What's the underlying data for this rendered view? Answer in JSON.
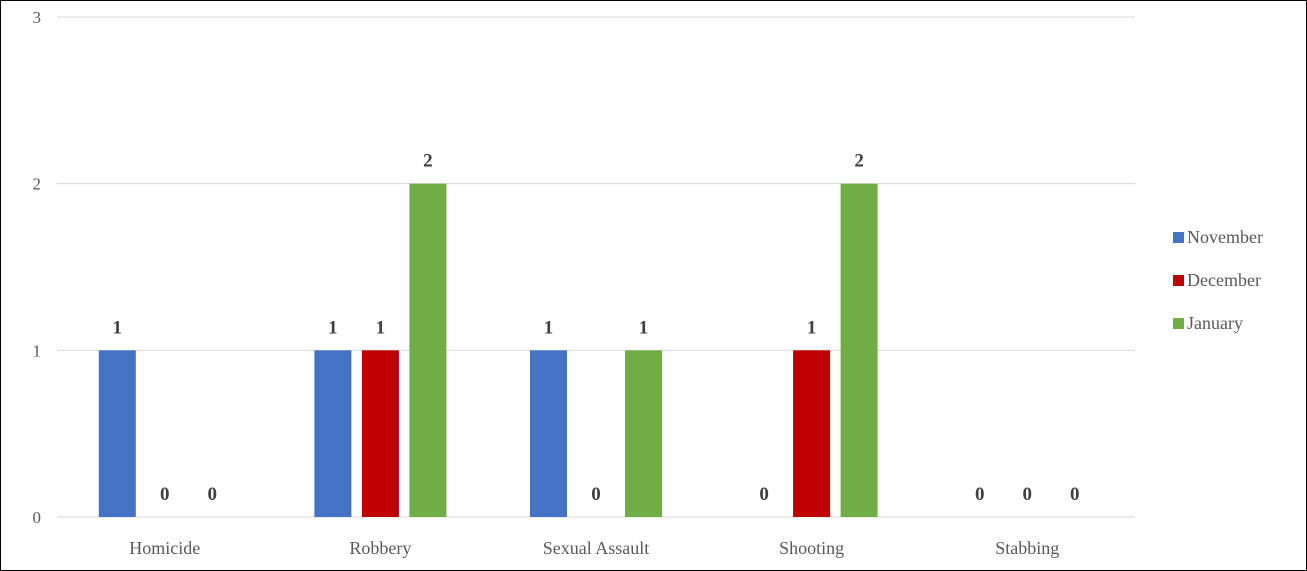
{
  "chart_data": {
    "type": "bar",
    "categories": [
      "Homicide",
      "Robbery",
      "Sexual Assault",
      "Shooting",
      "Stabbing"
    ],
    "series": [
      {
        "name": "November",
        "color": "#4472c4",
        "values": [
          1,
          1,
          1,
          0,
          0
        ]
      },
      {
        "name": "December",
        "color": "#c00000",
        "values": [
          0,
          1,
          0,
          1,
          0
        ]
      },
      {
        "name": "January",
        "color": "#70ad47",
        "values": [
          0,
          2,
          1,
          2,
          0
        ]
      }
    ],
    "yticks": [
      0,
      1,
      2,
      3
    ],
    "ylim": [
      0,
      3
    ],
    "grid": true,
    "data_labels": true,
    "legend_position": "right",
    "title": "",
    "xlabel": "",
    "ylabel": ""
  }
}
